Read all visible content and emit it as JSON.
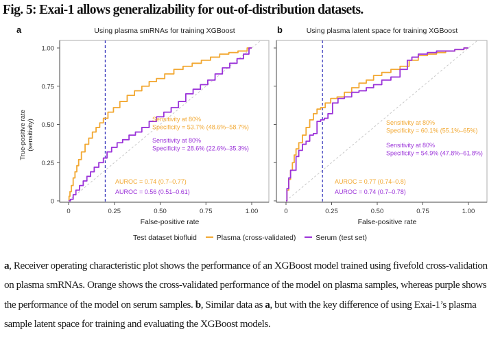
{
  "figure_title": "Fig. 5: Exai-1 allows generalizability for out-of-distribution datasets.",
  "colors": {
    "plasma": "#F2A832",
    "serum": "#9B33D9",
    "threshold_line": "#3333BB",
    "diagonal": "#C8C8C8",
    "axis": "#888888"
  },
  "legend": {
    "title": "Test dataset biofluid",
    "items": [
      {
        "label": "Plasma (cross-validated)",
        "color": "#F2A832"
      },
      {
        "label": "Serum (test set)",
        "color": "#9B33D9"
      }
    ]
  },
  "chart_data": [
    {
      "type": "line",
      "panel_letter": "a",
      "title": "Using plasma smRNAs for training XGBoost",
      "xlabel": "False-positive rate",
      "ylabel": "True-positive rate\n(sensitivity)",
      "ylabel_lines": [
        "True-positive rate",
        "(sensitivity)"
      ],
      "xlim": [
        0,
        1
      ],
      "ylim": [
        0,
        1
      ],
      "xticks": [
        0,
        0.25,
        0.5,
        0.75,
        1.0
      ],
      "xtick_labels": [
        "0",
        "0.25",
        "0.50",
        "0.75",
        "1.00"
      ],
      "yticks": [
        0,
        0.25,
        0.5,
        0.75,
        1.0
      ],
      "ytick_labels": [
        "0",
        "0.25",
        "0.50",
        "0.75",
        "1.00"
      ],
      "threshold_fpr": 0.2,
      "diagonal": true,
      "series": [
        {
          "name": "Plasma (cross-validated)",
          "x": [
            0,
            0.005,
            0.01,
            0.02,
            0.03,
            0.04,
            0.05,
            0.06,
            0.08,
            0.1,
            0.12,
            0.14,
            0.16,
            0.18,
            0.2,
            0.23,
            0.26,
            0.3,
            0.34,
            0.38,
            0.42,
            0.46,
            0.5,
            0.55,
            0.6,
            0.65,
            0.7,
            0.75,
            0.8,
            0.85,
            0.9,
            0.95,
            1.0
          ],
          "y": [
            0,
            0.03,
            0.06,
            0.1,
            0.15,
            0.19,
            0.23,
            0.27,
            0.32,
            0.37,
            0.41,
            0.45,
            0.48,
            0.51,
            0.54,
            0.58,
            0.61,
            0.65,
            0.69,
            0.72,
            0.75,
            0.78,
            0.8,
            0.83,
            0.86,
            0.88,
            0.9,
            0.92,
            0.94,
            0.96,
            0.97,
            0.98,
            1.0
          ]
        },
        {
          "name": "Serum (test set)",
          "x": [
            0,
            0.02,
            0.03,
            0.05,
            0.07,
            0.09,
            0.11,
            0.13,
            0.15,
            0.18,
            0.2,
            0.22,
            0.25,
            0.28,
            0.31,
            0.35,
            0.38,
            0.42,
            0.46,
            0.5,
            0.54,
            0.58,
            0.62,
            0.66,
            0.7,
            0.74,
            0.78,
            0.82,
            0.86,
            0.9,
            0.94,
            0.97,
            1.0
          ],
          "y": [
            0,
            0.01,
            0.04,
            0.07,
            0.1,
            0.13,
            0.16,
            0.19,
            0.22,
            0.25,
            0.28,
            0.32,
            0.35,
            0.38,
            0.4,
            0.43,
            0.45,
            0.48,
            0.52,
            0.55,
            0.58,
            0.61,
            0.65,
            0.7,
            0.73,
            0.76,
            0.79,
            0.83,
            0.87,
            0.9,
            0.93,
            0.96,
            1.0
          ]
        }
      ],
      "annotations": [
        {
          "series": "Plasma (cross-validated)",
          "lines": [
            "Sensitivity at 80%",
            "Specificity = 53.7% (48.6%–58.7%)"
          ]
        },
        {
          "series": "Serum (test set)",
          "lines": [
            "Sensitivity at 80%",
            "Specificity = 28.6% (22.6%–35.3%)"
          ]
        },
        {
          "series": "Plasma (cross-validated)",
          "lines": [
            "AUROC = 0.74 (0.7–0.77)"
          ]
        },
        {
          "series": "Serum (test set)",
          "lines": [
            "AUROC = 0.56 (0.51–0.61)"
          ]
        }
      ]
    },
    {
      "type": "line",
      "panel_letter": "b",
      "title": "Using plasma latent space for training XGBoost",
      "xlabel": "False-positive rate",
      "ylabel": "",
      "ylabel_lines": [],
      "xlim": [
        0,
        1
      ],
      "ylim": [
        0,
        1
      ],
      "xticks": [
        0,
        0.25,
        0.5,
        0.75,
        1.0
      ],
      "xtick_labels": [
        "0",
        "0.25",
        "0.50",
        "0.75",
        "1.00"
      ],
      "yticks": [
        0,
        0.25,
        0.5,
        0.75,
        1.0
      ],
      "ytick_labels": [],
      "threshold_fpr": 0.2,
      "diagonal": true,
      "series": [
        {
          "name": "Plasma (cross-validated)",
          "x": [
            0,
            0.01,
            0.02,
            0.03,
            0.04,
            0.05,
            0.06,
            0.08,
            0.1,
            0.12,
            0.14,
            0.16,
            0.18,
            0.2,
            0.23,
            0.26,
            0.3,
            0.34,
            0.38,
            0.42,
            0.46,
            0.5,
            0.55,
            0.6,
            0.65,
            0.7,
            0.75,
            0.8,
            0.85,
            0.9,
            0.95,
            1.0
          ],
          "y": [
            0,
            0.07,
            0.14,
            0.2,
            0.25,
            0.3,
            0.34,
            0.38,
            0.43,
            0.48,
            0.53,
            0.57,
            0.6,
            0.61,
            0.64,
            0.67,
            0.68,
            0.71,
            0.74,
            0.77,
            0.79,
            0.82,
            0.84,
            0.86,
            0.88,
            0.92,
            0.95,
            0.96,
            0.97,
            0.98,
            0.99,
            1.0
          ]
        },
        {
          "name": "Serum (test set)",
          "x": [
            0,
            0.01,
            0.02,
            0.03,
            0.05,
            0.06,
            0.08,
            0.1,
            0.12,
            0.14,
            0.16,
            0.18,
            0.2,
            0.22,
            0.24,
            0.27,
            0.3,
            0.34,
            0.38,
            0.42,
            0.46,
            0.5,
            0.55,
            0.6,
            0.65,
            0.68,
            0.7,
            0.75,
            0.8,
            0.85,
            0.9,
            0.95,
            1.0
          ],
          "y": [
            0,
            0.08,
            0.15,
            0.2,
            0.2,
            0.29,
            0.33,
            0.37,
            0.39,
            0.43,
            0.44,
            0.52,
            0.53,
            0.54,
            0.57,
            0.64,
            0.67,
            0.68,
            0.71,
            0.72,
            0.74,
            0.76,
            0.79,
            0.81,
            0.86,
            0.92,
            0.94,
            0.96,
            0.97,
            0.98,
            0.98,
            0.99,
            1.0
          ]
        }
      ],
      "annotations": [
        {
          "series": "Plasma (cross-validated)",
          "lines": [
            "Sensitivity at 80%",
            "Specificity = 60.1% (55.1%–65%)"
          ]
        },
        {
          "series": "Serum (test set)",
          "lines": [
            "Sensitivity at 80%",
            "Specificity = 54.9% (47.8%–61.8%)"
          ]
        },
        {
          "series": "Plasma (cross-validated)",
          "lines": [
            "AUROC = 0.77 (0.74–0.8)"
          ]
        },
        {
          "series": "Serum (test set)",
          "lines": [
            "AUROC = 0.74 (0.7–0.78)"
          ]
        }
      ]
    }
  ],
  "caption": {
    "segments": [
      {
        "text": "a",
        "bold": true
      },
      {
        "text": ", Receiver operating characteristic plot shows the performance of an XGBoost model trained using fivefold cross-validation on plasma smRNAs. Orange shows the cross-validated performance of the model on plasma samples, whereas purple shows the performance of the model on serum samples. ",
        "bold": false
      },
      {
        "text": "b",
        "bold": true
      },
      {
        "text": ", Similar data as ",
        "bold": false
      },
      {
        "text": "a",
        "bold": true
      },
      {
        "text": ", but with the key difference of using Exai-1’s plasma sample latent space for training and evaluating the XGBoost models.",
        "bold": false
      }
    ]
  }
}
